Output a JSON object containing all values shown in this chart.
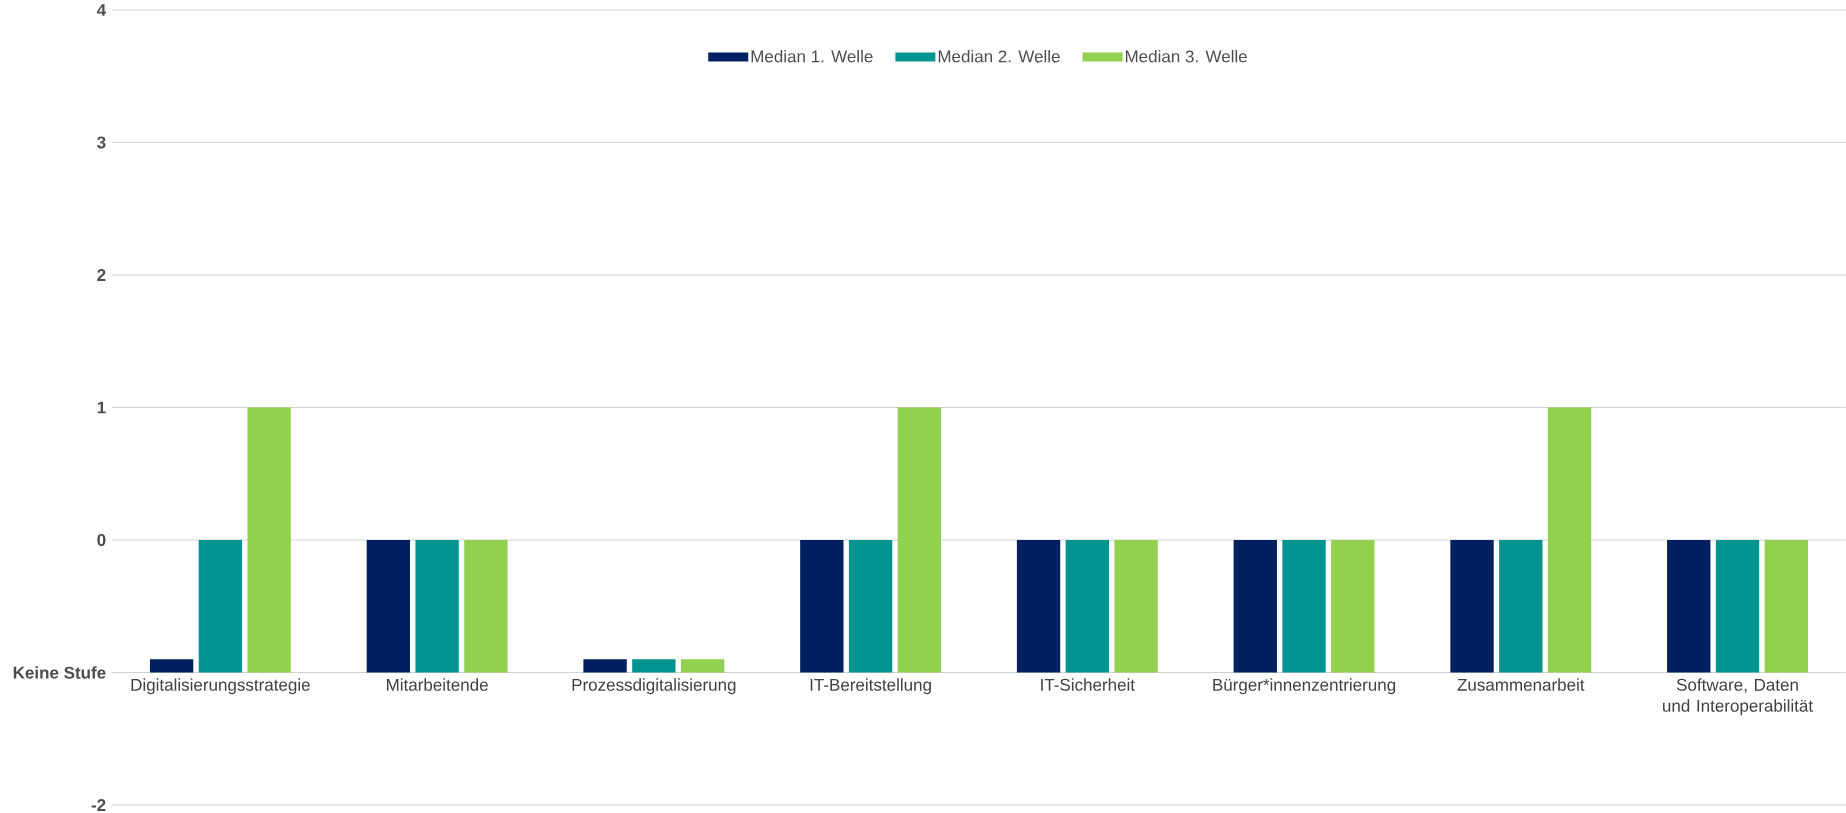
{
  "chart_data": {
    "type": "bar",
    "categories": [
      "Digitalisierungsstrategie",
      "Mitarbeitende",
      "Prozessdigitalisierung",
      "IT-Bereitstellung",
      "IT-Sicherheit",
      "Bürger*innenzentrierung",
      "Zusammenarbeit",
      "Software, Daten und Interoperabilität"
    ],
    "series": [
      {
        "name": "Median 1. Welle",
        "color": "#002060",
        "base": [
          -1,
          -1,
          -1,
          -1,
          -1,
          -1,
          -1,
          -1
        ],
        "values": [
          0.1,
          1,
          0.1,
          1,
          1,
          1,
          1,
          1
        ]
      },
      {
        "name": "Median 2. Welle",
        "color": "#009490",
        "base": [
          -1,
          -1,
          -1,
          -1,
          -1,
          -1,
          -1,
          -1
        ],
        "values": [
          1,
          1,
          0.1,
          1,
          1,
          1,
          1,
          1
        ]
      },
      {
        "name": "Median 3. Welle",
        "color": "#92d050",
        "base": [
          -1,
          -1,
          -1,
          -1,
          -1,
          -1,
          -1,
          -1
        ],
        "values": [
          2,
          1,
          0.1,
          2,
          1,
          1,
          2,
          1
        ]
      }
    ],
    "ylim": [
      -2,
      4
    ],
    "yticks": [
      -2,
      {
        "value": -1,
        "label": "Keine Stufe"
      },
      0,
      1,
      2,
      3,
      4
    ],
    "grid": "y",
    "legend": "top"
  }
}
